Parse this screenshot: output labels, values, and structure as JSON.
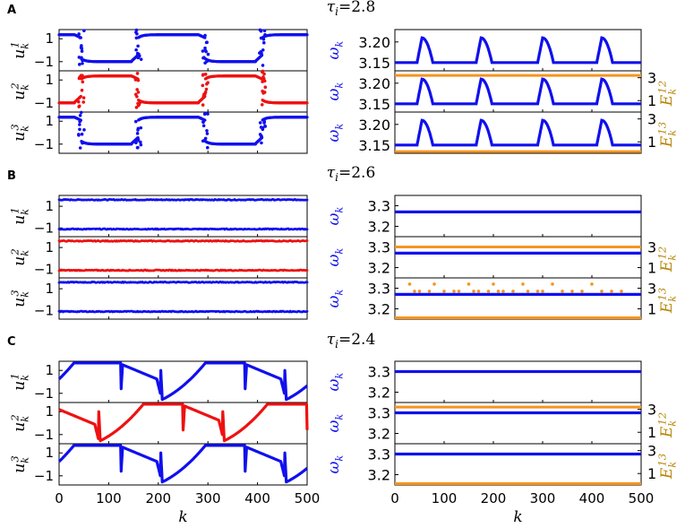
{
  "colors": {
    "blue": "#1010ee",
    "red": "#ee1111",
    "orange": "#f7941d",
    "E_label": "#b8860b",
    "axes": "#000000"
  },
  "shared_labels": {
    "xlabel": "k",
    "x_ticks": [
      "0",
      "100",
      "200",
      "300",
      "400",
      "500"
    ],
    "u_ticks": [
      "1",
      "−1"
    ],
    "E_ticks": [
      "3",
      "1"
    ],
    "u_labels": [
      "u_k^1",
      "u_k^2",
      "u_k^3"
    ],
    "omega_label": "ω_k",
    "E_labels": [
      "E_k^12",
      "E_k^13"
    ]
  },
  "chart_data": [
    {
      "panel": "A",
      "title": "τ_i = 2.8",
      "type": "scatter",
      "x_range": [
        0,
        500
      ],
      "left_column": {
        "ylim": [
          -1.8,
          1.8
        ],
        "yticks": [
          1,
          -1
        ],
        "series": [
          {
            "name": "u_k^1",
            "color": "blue",
            "pattern": "jumps",
            "rising_switch_k": [
              160,
              410
            ],
            "falling_switch_k": [
              45,
              295
            ],
            "high_level": 1.35,
            "low_level": -0.95
          },
          {
            "name": "u_k^2",
            "color": "red",
            "pattern": "jumps",
            "rising_switch_k": [
              45,
              295
            ],
            "falling_switch_k": [
              160,
              410
            ],
            "high_level": 1.35,
            "low_level": -0.95
          },
          {
            "name": "u_k^3",
            "color": "blue",
            "pattern": "jumps",
            "rising_switch_k": [
              160,
              410
            ],
            "falling_switch_k": [
              45,
              295
            ],
            "high_level": 1.35,
            "low_level": -0.95
          }
        ]
      },
      "right_column": {
        "omega_ylim": [
          3.13,
          3.23
        ],
        "omega_ticks": [
          "3.20",
          "3.15"
        ],
        "omega_tick_values": [
          3.2,
          3.15
        ],
        "omega_baseline": 3.15,
        "omega_peak": 3.21,
        "omega_peak_k": [
          55,
          175,
          300,
          420
        ],
        "E12": {
          "value": 3.2,
          "ylim": [
            0,
            3.6
          ],
          "color": "orange"
        },
        "E13": {
          "value": 0.15,
          "ylim": [
            0,
            3.6
          ],
          "color": "orange"
        },
        "E12_ticks_shown": true,
        "E13_ticks_shown": true
      }
    },
    {
      "panel": "B",
      "title": "τ_i = 2.6",
      "type": "scatter",
      "x_range": [
        0,
        500
      ],
      "left_column": {
        "ylim": [
          -1.8,
          2.0
        ],
        "yticks": [
          1,
          -1
        ],
        "series": [
          {
            "name": "u_k^1",
            "color": "blue",
            "pattern": "two-levels",
            "levels": [
              1.6,
              -1.1
            ]
          },
          {
            "name": "u_k^2",
            "color": "red",
            "pattern": "two-levels",
            "levels": [
              1.6,
              -1.1
            ]
          },
          {
            "name": "u_k^3",
            "color": "blue",
            "pattern": "two-levels",
            "levels": [
              1.6,
              -1.1
            ]
          }
        ]
      },
      "right_column": {
        "omega_ylim": [
          3.15,
          3.35
        ],
        "omega_ticks": [
          "3.3",
          "3.2"
        ],
        "omega_tick_values": [
          3.3,
          3.2
        ],
        "omega_constant": 3.27,
        "E12": {
          "value": 3.0,
          "ylim": [
            0,
            4.0
          ],
          "color": "orange"
        },
        "E13": {
          "value": 0.05,
          "ylim": [
            0,
            4.0
          ],
          "color": "orange",
          "scatter_k": [
            30,
            40,
            50,
            70,
            80,
            100,
            120,
            130,
            150,
            160,
            170,
            190,
            200,
            210,
            220,
            240,
            260,
            270,
            290,
            300,
            320,
            340,
            360,
            380,
            400,
            420,
            440,
            460
          ],
          "scatter_low": 2.7,
          "scatter_high": 3.4
        },
        "E12_ticks_shown": true,
        "E13_ticks_shown": true
      }
    },
    {
      "panel": "C",
      "title": "τ_i = 2.4",
      "type": "line",
      "x_range": [
        0,
        500
      ],
      "left_column": {
        "ylim": [
          -1.8,
          1.8
        ],
        "yticks": [
          1,
          -1
        ],
        "series": [
          {
            "name": "u_k^1",
            "color": "blue",
            "pattern": "relaxation",
            "rise_k": [
              125,
              375
            ],
            "fall_k": [
              205,
              455
            ]
          },
          {
            "name": "u_k^2",
            "color": "red",
            "pattern": "relaxation",
            "rise_k": [
              250,
              500
            ],
            "fall_k": [
              80,
              330
            ],
            "start_high": true
          },
          {
            "name": "u_k^3",
            "color": "blue",
            "pattern": "relaxation",
            "rise_k": [
              125,
              375
            ],
            "fall_k": [
              205,
              455
            ]
          }
        ]
      },
      "right_column": {
        "omega_ylim": [
          3.15,
          3.35
        ],
        "omega_ticks": [
          "3.3",
          "3.2"
        ],
        "omega_tick_values": [
          3.3,
          3.2
        ],
        "omega_constant": 3.3,
        "E12": {
          "value": 3.2,
          "ylim": [
            0,
            3.6
          ],
          "color": "orange"
        },
        "E13": {
          "value": 0.05,
          "ylim": [
            0,
            3.6
          ],
          "color": "orange"
        },
        "E12_ticks_shown": true,
        "E13_ticks_shown": true
      }
    }
  ]
}
